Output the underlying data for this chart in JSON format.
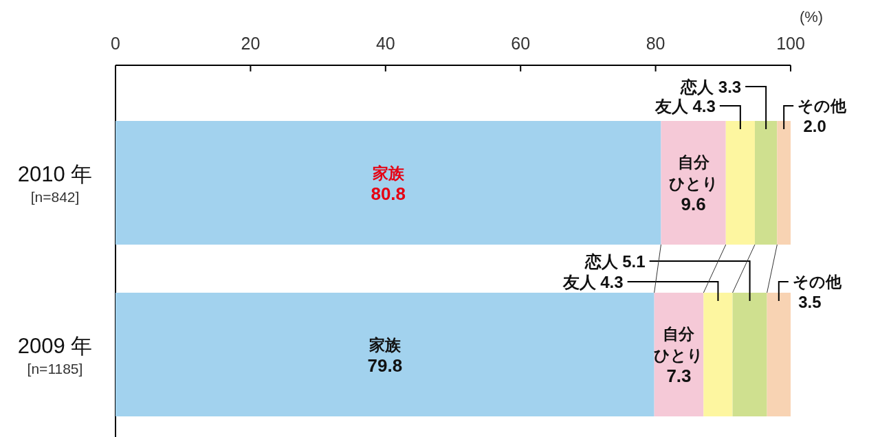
{
  "chart_data": {
    "type": "bar",
    "orientation": "horizontal",
    "stacked": true,
    "xlabel": "(%)",
    "xlim": [
      0,
      100
    ],
    "xticks": [
      0,
      20,
      40,
      60,
      80,
      100
    ],
    "categories": [
      "2010 年\n[n=842]",
      "2009 年\n[n=1185]"
    ],
    "series": [
      {
        "name": "家族",
        "color": "#a2d2ee",
        "values": [
          80.8,
          79.8
        ],
        "value_labels": [
          "80.8",
          "79.8"
        ]
      },
      {
        "name": "自分ひとり",
        "color": "#f5c9d7",
        "values": [
          9.6,
          7.3
        ],
        "value_labels": [
          "9.6",
          "7.3"
        ]
      },
      {
        "name": "友人",
        "color": "#fdf6a0",
        "values": [
          4.3,
          4.3
        ],
        "value_labels": [
          "4.3",
          "4.3"
        ]
      },
      {
        "name": "恋人",
        "color": "#cfe08f",
        "values": [
          3.3,
          5.1
        ],
        "value_labels": [
          "3.3",
          "5.1"
        ]
      },
      {
        "name": "その他",
        "color": "#f8d3b3",
        "values": [
          2.0,
          3.5
        ],
        "value_labels": [
          "2.0",
          "3.5"
        ]
      }
    ]
  }
}
